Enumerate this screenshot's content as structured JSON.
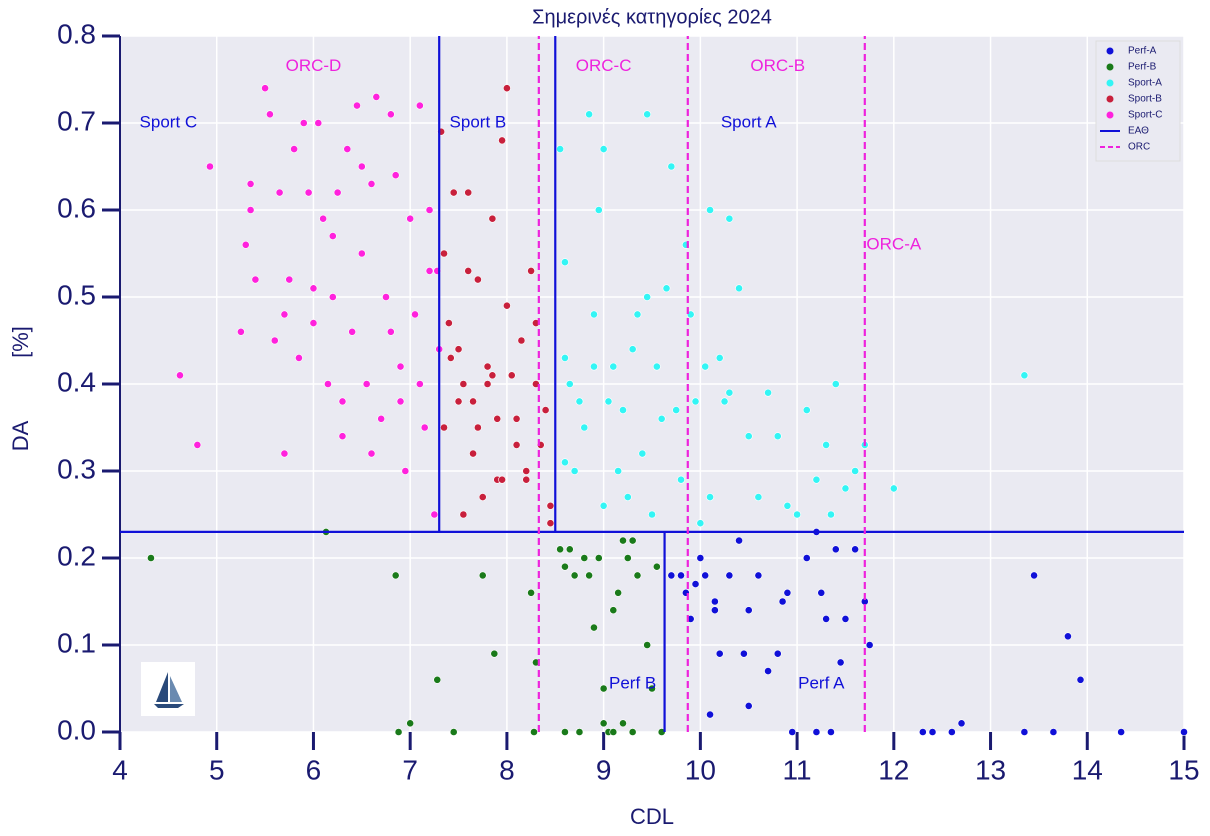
{
  "chart_data": {
    "type": "scatter",
    "title": "Σημερινές κατηγορίες 2024",
    "xlabel": "CDL",
    "ylabel": "DA",
    "yunit": "[%]",
    "xlim": [
      4,
      15
    ],
    "ylim": [
      0,
      0.8
    ],
    "xticks": [
      4,
      5,
      6,
      7,
      8,
      9,
      10,
      11,
      12,
      13,
      14,
      15
    ],
    "yticks": [
      {
        "value": 0,
        "label": "0.0"
      },
      0.1,
      0.2,
      0.3,
      0.4,
      0.5,
      0.6,
      0.7,
      0.8
    ],
    "grid": true,
    "legend": "upper right",
    "series": [
      {
        "name": "Perf-A",
        "color": "#1010d8",
        "x": [
          9.7,
          9.8,
          9.85,
          9.9,
          9.95,
          10.0,
          10.05,
          10.1,
          10.15,
          10.2,
          10.3,
          10.4,
          10.5,
          10.5,
          10.6,
          10.7,
          10.8,
          10.85,
          10.9,
          11.1,
          11.2,
          11.25,
          11.3,
          11.4,
          11.45,
          11.5,
          11.6,
          11.7,
          11.75,
          12.3,
          12.4,
          12.6,
          12.7,
          13.35,
          13.45,
          13.65,
          13.8,
          13.93,
          14.35,
          15.0,
          10.15,
          10.45,
          10.95,
          11.2,
          11.35
        ],
        "values": [
          0.18,
          0.18,
          0.16,
          0.13,
          0.17,
          0.2,
          0.18,
          0.02,
          0.14,
          0.09,
          0.18,
          0.22,
          0.14,
          0.03,
          0.18,
          0.07,
          0.09,
          0.15,
          0.16,
          0.2,
          0.0,
          0.16,
          0.13,
          0.21,
          0.08,
          0.13,
          0.21,
          0.15,
          0.1,
          0.0,
          0.0,
          0.0,
          0.01,
          0.0,
          0.18,
          0.0,
          0.11,
          0.06,
          0.0,
          0.0,
          0.15,
          0.09,
          0.0,
          0.23,
          0.0
        ]
      },
      {
        "name": "Perf-B",
        "color": "#1a7a1a",
        "x": [
          4.32,
          6.13,
          6.85,
          6.88,
          7.0,
          7.28,
          7.45,
          7.75,
          7.87,
          8.25,
          8.28,
          8.3,
          8.55,
          8.6,
          8.65,
          8.7,
          8.75,
          8.8,
          8.85,
          8.9,
          8.95,
          9.0,
          9.05,
          9.1,
          9.15,
          9.2,
          9.25,
          9.3,
          9.35,
          9.45,
          9.5,
          9.55,
          9.6,
          9.0,
          9.1,
          9.2,
          8.6,
          8.75,
          9.3
        ],
        "values": [
          0.2,
          0.23,
          0.18,
          0.0,
          0.01,
          0.06,
          0.0,
          0.18,
          0.09,
          0.16,
          0.0,
          0.08,
          0.21,
          0.19,
          0.21,
          0.18,
          0.0,
          0.2,
          0.18,
          0.12,
          0.2,
          0.05,
          0.0,
          0.14,
          0.16,
          0.22,
          0.2,
          0.22,
          0.18,
          0.1,
          0.05,
          0.19,
          0.0,
          0.01,
          0.0,
          0.01,
          0.0,
          0.0,
          0.0
        ]
      },
      {
        "name": "Sport-A",
        "color": "#33f5f5",
        "x": [
          8.55,
          8.6,
          8.6,
          8.65,
          8.7,
          8.75,
          8.8,
          8.85,
          8.9,
          8.95,
          9.0,
          9.05,
          9.1,
          9.15,
          9.2,
          9.25,
          9.3,
          9.35,
          9.4,
          9.45,
          9.5,
          9.55,
          9.6,
          9.65,
          9.7,
          9.75,
          9.8,
          9.85,
          9.9,
          9.95,
          10.0,
          10.05,
          10.1,
          10.2,
          10.25,
          10.3,
          10.4,
          10.5,
          10.6,
          10.7,
          10.8,
          10.9,
          11.0,
          11.1,
          11.2,
          11.3,
          11.35,
          11.4,
          11.5,
          11.6,
          11.7,
          12.0,
          13.35,
          8.9,
          9.45,
          9.0,
          10.1,
          10.3,
          8.6
        ],
        "values": [
          0.67,
          0.54,
          0.43,
          0.4,
          0.3,
          0.38,
          0.35,
          0.71,
          0.42,
          0.6,
          0.67,
          0.38,
          0.42,
          0.3,
          0.37,
          0.27,
          0.44,
          0.48,
          0.32,
          0.71,
          0.25,
          0.42,
          0.36,
          0.51,
          0.65,
          0.37,
          0.29,
          0.56,
          0.48,
          0.38,
          0.24,
          0.42,
          0.6,
          0.43,
          0.38,
          0.59,
          0.51,
          0.34,
          0.27,
          0.39,
          0.34,
          0.26,
          0.25,
          0.37,
          0.29,
          0.33,
          0.25,
          0.4,
          0.28,
          0.3,
          0.33,
          0.28,
          0.41,
          0.48,
          0.5,
          0.26,
          0.27,
          0.39,
          0.31
        ]
      },
      {
        "name": "Sport-B",
        "color": "#c8203c",
        "x": [
          7.32,
          7.35,
          7.4,
          7.45,
          7.5,
          7.55,
          7.6,
          7.65,
          7.7,
          7.75,
          7.8,
          7.85,
          7.9,
          7.95,
          8.0,
          8.05,
          8.1,
          8.15,
          8.2,
          8.25,
          8.3,
          8.35,
          8.4,
          8.45,
          7.35,
          7.5,
          7.6,
          7.7,
          7.8,
          7.95,
          8.1,
          8.3,
          8.45,
          7.42,
          7.65,
          7.9,
          8.0,
          8.2,
          7.55,
          7.85
        ],
        "values": [
          0.69,
          0.55,
          0.47,
          0.62,
          0.38,
          0.4,
          0.53,
          0.32,
          0.35,
          0.27,
          0.42,
          0.59,
          0.29,
          0.68,
          0.74,
          0.41,
          0.36,
          0.45,
          0.3,
          0.53,
          0.4,
          0.33,
          0.37,
          0.24,
          0.35,
          0.44,
          0.62,
          0.52,
          0.4,
          0.29,
          0.33,
          0.47,
          0.26,
          0.43,
          0.38,
          0.36,
          0.49,
          0.29,
          0.25,
          0.41
        ]
      },
      {
        "name": "Sport-C",
        "color": "#ff22dd",
        "x": [
          4.62,
          4.8,
          4.93,
          5.25,
          5.3,
          5.35,
          5.4,
          5.5,
          5.55,
          5.6,
          5.7,
          5.75,
          5.8,
          5.85,
          5.9,
          5.95,
          6.0,
          6.05,
          6.1,
          6.15,
          6.2,
          6.25,
          6.3,
          6.35,
          6.4,
          6.45,
          6.5,
          6.55,
          6.6,
          6.65,
          6.7,
          6.75,
          6.8,
          6.85,
          6.9,
          6.95,
          7.0,
          7.05,
          7.1,
          7.15,
          7.2,
          7.25,
          7.3,
          5.7,
          6.0,
          6.3,
          6.6,
          6.9,
          7.2,
          5.35,
          5.65,
          6.2,
          6.5,
          6.8,
          7.1,
          7.28
        ],
        "values": [
          0.41,
          0.33,
          0.65,
          0.46,
          0.56,
          0.6,
          0.52,
          0.74,
          0.71,
          0.45,
          0.32,
          0.52,
          0.67,
          0.43,
          0.7,
          0.62,
          0.51,
          0.7,
          0.59,
          0.4,
          0.5,
          0.62,
          0.38,
          0.67,
          0.46,
          0.72,
          0.55,
          0.4,
          0.63,
          0.73,
          0.36,
          0.5,
          0.71,
          0.64,
          0.42,
          0.3,
          0.59,
          0.48,
          0.72,
          0.35,
          0.6,
          0.25,
          0.44,
          0.48,
          0.47,
          0.34,
          0.32,
          0.38,
          0.53,
          0.63,
          0.62,
          0.57,
          0.65,
          0.46,
          0.4,
          0.53
        ]
      }
    ],
    "lines": [
      {
        "name": "ΕΑΘ",
        "color": "#1010d8",
        "dashed": false,
        "segments": [
          {
            "x": [
              7.3,
              7.3
            ],
            "y": [
              0.23,
              0.8
            ]
          },
          {
            "x": [
              8.5,
              8.5
            ],
            "y": [
              0.23,
              0.8
            ]
          },
          {
            "x": [
              4,
              15
            ],
            "y": [
              0.23,
              0.23
            ]
          },
          {
            "x": [
              9.63,
              9.63
            ],
            "y": [
              0,
              0.23
            ]
          }
        ]
      },
      {
        "name": "ORC",
        "color": "#ee22dd",
        "dashed": true,
        "segments": [
          {
            "x": [
              8.33,
              8.33
            ],
            "y": [
              0,
              0.8
            ]
          },
          {
            "x": [
              9.87,
              9.87
            ],
            "y": [
              0,
              0.8
            ]
          },
          {
            "x": [
              11.7,
              11.7
            ],
            "y": [
              0,
              0.8
            ]
          }
        ]
      }
    ],
    "annotations": [
      {
        "text": "Sport C",
        "x": 4.5,
        "y": 0.7,
        "color": "#1010d8"
      },
      {
        "text": "ORC-D",
        "x": 6.0,
        "y": 0.765,
        "color": "#ee22dd"
      },
      {
        "text": "Sport B",
        "x": 7.7,
        "y": 0.7,
        "color": "#1010d8"
      },
      {
        "text": "ORC-C",
        "x": 9.0,
        "y": 0.765,
        "color": "#ee22dd"
      },
      {
        "text": "ORC-B",
        "x": 10.8,
        "y": 0.765,
        "color": "#ee22dd"
      },
      {
        "text": "Sport A",
        "x": 10.5,
        "y": 0.7,
        "color": "#1010d8"
      },
      {
        "text": "ORC-A",
        "x": 12.0,
        "y": 0.56,
        "color": "#ee22dd"
      },
      {
        "text": "Perf B",
        "x": 9.3,
        "y": 0.055,
        "color": "#1010d8"
      },
      {
        "text": "Perf A",
        "x": 11.25,
        "y": 0.055,
        "color": "#1010d8"
      }
    ]
  }
}
